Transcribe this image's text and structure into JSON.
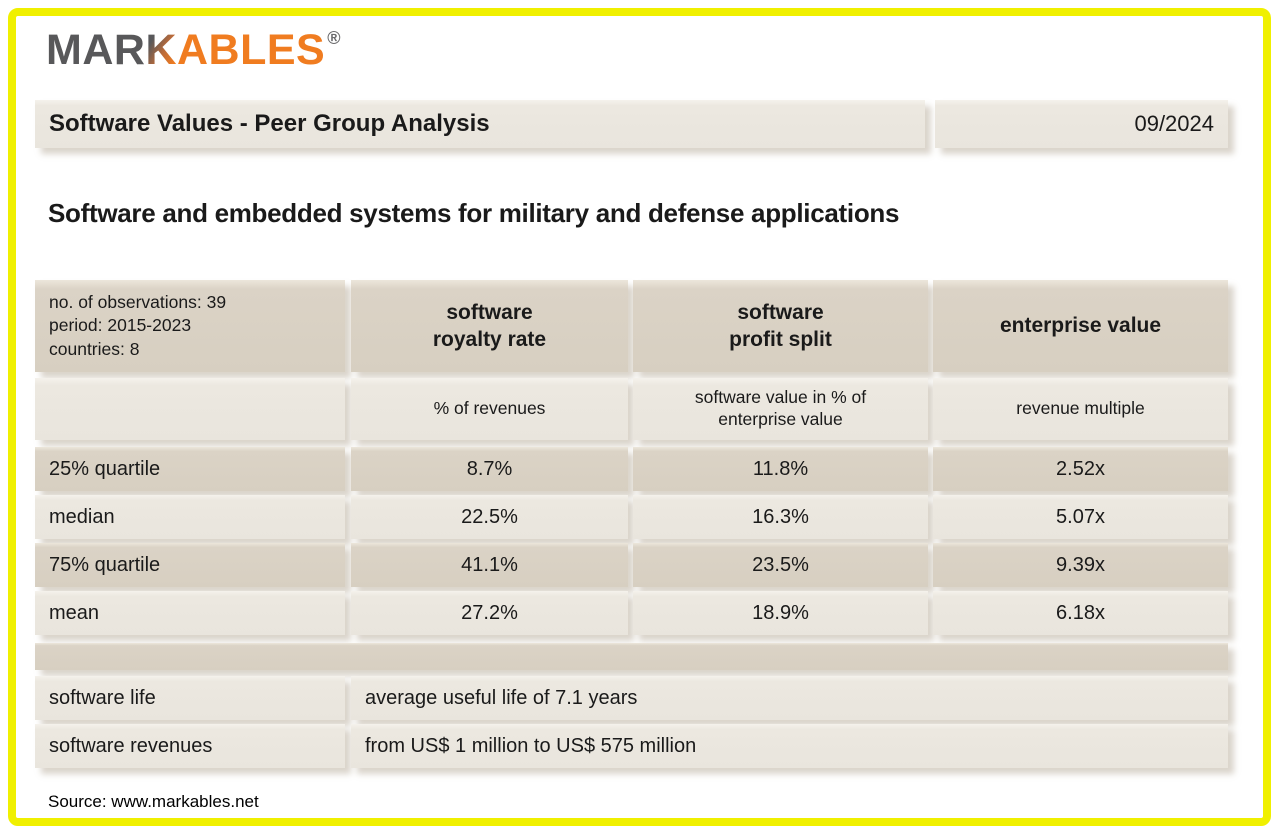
{
  "logo": {
    "part_gray": "MAR",
    "part_blend": "K",
    "part_orange": "ABLES",
    "registered": "®"
  },
  "header": {
    "title": "Software Values - Peer Group Analysis",
    "date": "09/2024"
  },
  "subtitle": "Software and embedded systems for military and defense applications",
  "stats_table": {
    "meta": [
      "no. of observations: 39",
      "period: 2015-2023",
      "countries: 8"
    ],
    "columns": [
      {
        "title": [
          "software",
          "royalty rate"
        ],
        "unit": "% of revenues"
      },
      {
        "title": [
          "software",
          "profit split"
        ],
        "unit": "software value in % of enterprise value"
      },
      {
        "title": [
          "enterprise value"
        ],
        "unit": "revenue multiple"
      }
    ],
    "rows": [
      {
        "label": "25% quartile",
        "values": [
          "8.7%",
          "11.8%",
          "2.52x"
        ]
      },
      {
        "label": "median",
        "values": [
          "22.5%",
          "16.3%",
          "5.07x"
        ]
      },
      {
        "label": "75% quartile",
        "values": [
          "41.1%",
          "23.5%",
          "9.39x"
        ]
      },
      {
        "label": "mean",
        "values": [
          "27.2%",
          "18.9%",
          "6.18x"
        ]
      }
    ],
    "details": [
      {
        "label": "software life",
        "value": "average useful life of 7.1 years"
      },
      {
        "label": "software revenues",
        "value": "from US$ 1 million to US$ 575 million"
      }
    ]
  },
  "footer": {
    "source": "Source: www.markables.net"
  },
  "colors": {
    "frame_yellow": "#f0f000",
    "cell_dark": "#d7cfc1",
    "cell_light": "#ece8e0",
    "logo_gray": "#58585a",
    "logo_orange": "#f07c20",
    "text": "#1a1a1a"
  }
}
